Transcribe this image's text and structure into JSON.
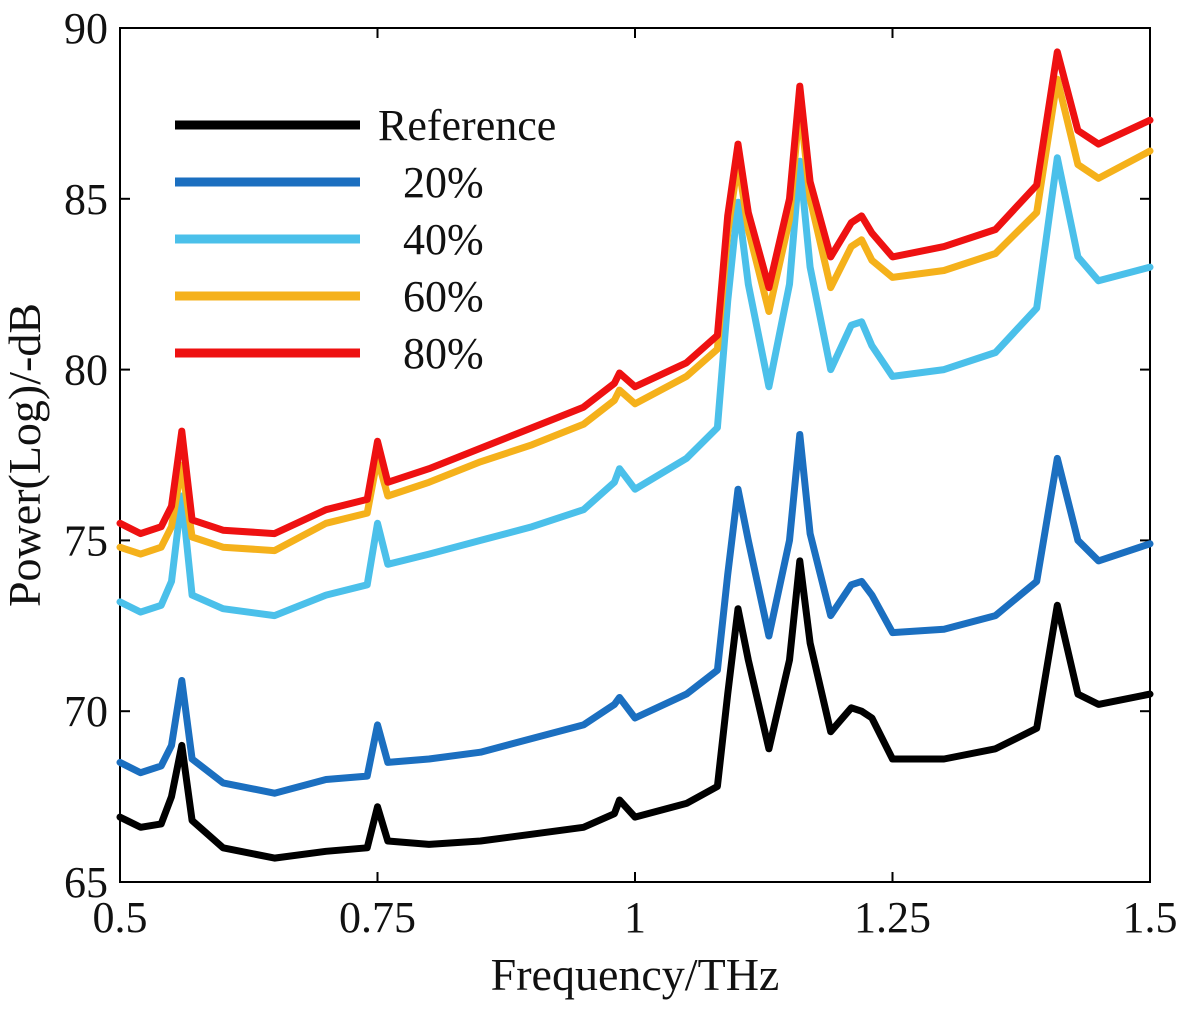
{
  "chart_data": {
    "type": "line",
    "xlabel": "Frequency/THz",
    "ylabel": "Power(Log)/-dB",
    "xlim": [
      0.5,
      1.5
    ],
    "ylim": [
      65,
      90
    ],
    "xticks": [
      0.5,
      0.75,
      1,
      1.25,
      1.5
    ],
    "xtick_labels": [
      "0.5",
      "0.75",
      "1",
      "1.25",
      "1.5"
    ],
    "yticks": [
      65,
      70,
      75,
      80,
      85,
      90
    ],
    "ytick_labels": [
      "65",
      "70",
      "75",
      "80",
      "85",
      "90"
    ],
    "grid": false,
    "legend_position": "top-left",
    "x": [
      0.5,
      0.52,
      0.54,
      0.55,
      0.56,
      0.57,
      0.6,
      0.65,
      0.7,
      0.74,
      0.75,
      0.76,
      0.8,
      0.85,
      0.9,
      0.95,
      0.98,
      0.985,
      1.0,
      1.05,
      1.08,
      1.09,
      1.1,
      1.11,
      1.13,
      1.15,
      1.16,
      1.17,
      1.19,
      1.21,
      1.22,
      1.23,
      1.25,
      1.3,
      1.35,
      1.39,
      1.41,
      1.43,
      1.45,
      1.5
    ],
    "series": [
      {
        "name": "Reference",
        "color": "#000000",
        "values": [
          66.9,
          66.6,
          66.7,
          67.5,
          69.0,
          66.8,
          66.0,
          65.7,
          65.9,
          66.0,
          67.2,
          66.2,
          66.1,
          66.2,
          66.4,
          66.6,
          67.0,
          67.4,
          66.9,
          67.3,
          67.8,
          70.5,
          73.0,
          71.5,
          68.9,
          71.5,
          74.4,
          72.0,
          69.4,
          70.1,
          70.0,
          69.8,
          68.6,
          68.6,
          68.9,
          69.5,
          73.1,
          70.5,
          70.2,
          70.5
        ]
      },
      {
        "name": "20%",
        "color": "#1b6fc0",
        "values": [
          68.5,
          68.2,
          68.4,
          69.0,
          70.9,
          68.6,
          67.9,
          67.6,
          68.0,
          68.1,
          69.6,
          68.5,
          68.6,
          68.8,
          69.2,
          69.6,
          70.2,
          70.4,
          69.8,
          70.5,
          71.2,
          74.0,
          76.5,
          75.0,
          72.2,
          75.0,
          78.1,
          75.2,
          72.8,
          73.7,
          73.8,
          73.4,
          72.3,
          72.4,
          72.8,
          73.8,
          77.4,
          75.0,
          74.4,
          74.9
        ]
      },
      {
        "name": "40%",
        "color": "#4bc0ea",
        "values": [
          73.2,
          72.9,
          73.1,
          73.8,
          76.3,
          73.4,
          73.0,
          72.8,
          73.4,
          73.7,
          75.5,
          74.3,
          74.6,
          75.0,
          75.4,
          75.9,
          76.7,
          77.1,
          76.5,
          77.4,
          78.3,
          82.0,
          84.9,
          82.5,
          79.5,
          82.5,
          86.1,
          83.0,
          80.0,
          81.3,
          81.4,
          80.7,
          79.8,
          80.0,
          80.5,
          81.8,
          86.2,
          83.3,
          82.6,
          83.0
        ]
      },
      {
        "name": "60%",
        "color": "#f5b11b",
        "values": [
          74.8,
          74.6,
          74.8,
          75.4,
          77.2,
          75.1,
          74.8,
          74.7,
          75.5,
          75.8,
          77.4,
          76.3,
          76.7,
          77.3,
          77.8,
          78.4,
          79.1,
          79.4,
          79.0,
          79.8,
          80.6,
          84.0,
          86.1,
          84.1,
          81.7,
          84.4,
          87.8,
          85.0,
          82.4,
          83.6,
          83.8,
          83.2,
          82.7,
          82.9,
          83.4,
          84.6,
          88.5,
          86.0,
          85.6,
          86.4
        ]
      },
      {
        "name": "80%",
        "color": "#ee1111",
        "values": [
          75.5,
          75.2,
          75.4,
          76.0,
          78.2,
          75.6,
          75.3,
          75.2,
          75.9,
          76.2,
          77.9,
          76.7,
          77.1,
          77.7,
          78.3,
          78.9,
          79.6,
          79.9,
          79.5,
          80.2,
          81.0,
          84.5,
          86.6,
          84.6,
          82.4,
          85.0,
          88.3,
          85.5,
          83.3,
          84.3,
          84.5,
          84.0,
          83.3,
          83.6,
          84.1,
          85.4,
          89.3,
          87.0,
          86.6,
          87.3
        ]
      }
    ]
  }
}
